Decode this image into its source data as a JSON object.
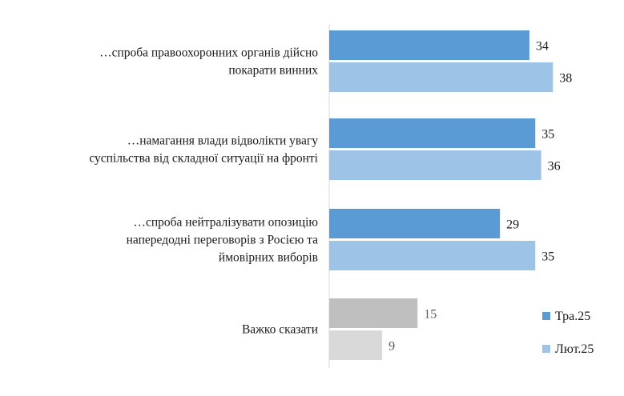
{
  "chart_data": {
    "type": "bar",
    "orientation": "horizontal",
    "categories": [
      [
        "…спроба правоохоронних органів дійсно",
        "покарати винних"
      ],
      [
        "…намагання влади відволікти увагу",
        "суспільства від складної ситуації на фронті"
      ],
      [
        "…спроба нейтралізувати опозицію",
        "напередодні переговорів з Росією та",
        "ймовірних виборів"
      ],
      [
        "Важко сказати"
      ]
    ],
    "series": [
      {
        "name": "Тра.25",
        "values": [
          34,
          35,
          29,
          15
        ]
      },
      {
        "name": "Лют.25",
        "values": [
          38,
          36,
          35,
          9
        ]
      }
    ],
    "xlim": [
      0,
      40
    ],
    "grid": false,
    "legend_position": "bottom-right",
    "colors": {
      "series": [
        "#5b9bd5",
        "#9dc3e6"
      ],
      "muted_series": [
        "#bfbfbf",
        "#d9d9d9"
      ]
    }
  }
}
